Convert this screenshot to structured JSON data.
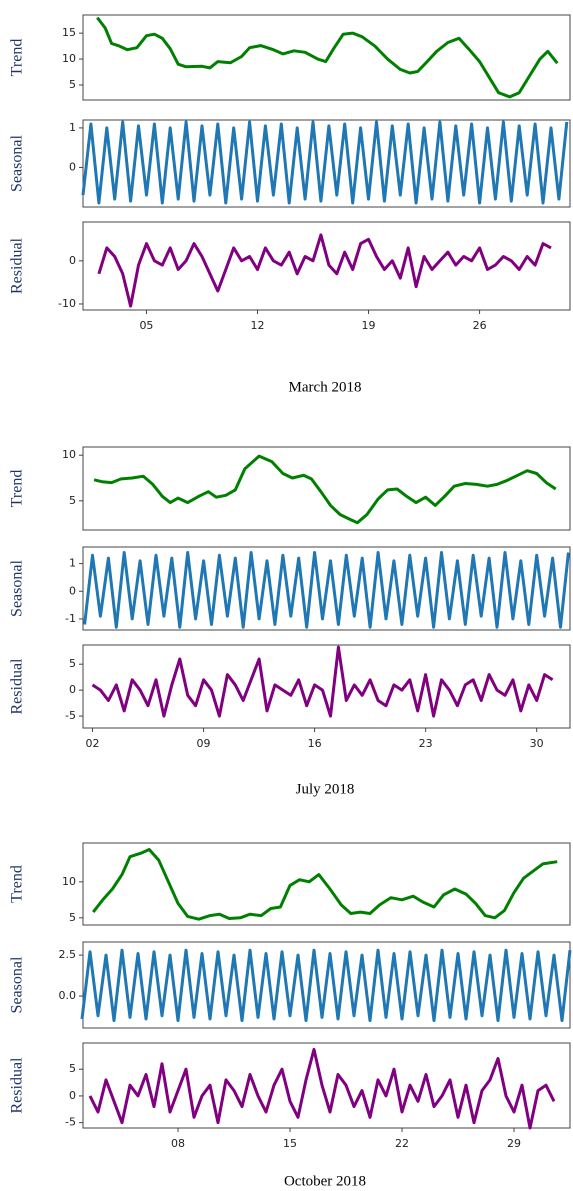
{
  "chart_data": [
    {
      "type": "line",
      "ylabel": "Trend",
      "color": "#008000",
      "xlim": [
        1,
        31.7
      ],
      "ylim": [
        2.1,
        18.5
      ],
      "yticks": [
        5,
        10,
        15
      ],
      "x": [
        1.9,
        2.4,
        2.8,
        3.3,
        3.8,
        4.4,
        5.0,
        5.5,
        6.0,
        6.5,
        7.0,
        7.5,
        8.5,
        9.0,
        9.5,
        10.3,
        11,
        11.5,
        12.2,
        13,
        13.6,
        14.3,
        15,
        15.8,
        16.3,
        16.8,
        17.4,
        18,
        18.6,
        19.4,
        20.2,
        21,
        21.6,
        22.1,
        22.7,
        23.3,
        24,
        24.7,
        25.3,
        26,
        26.7,
        27.2,
        27.9,
        28.5,
        29.2,
        29.8,
        30.3,
        30.9
      ],
      "values": [
        18,
        16,
        13,
        12.5,
        11.8,
        12.2,
        14.5,
        14.8,
        14,
        12,
        9,
        8.5,
        8.6,
        8.3,
        9.5,
        9.3,
        10.5,
        12.2,
        12.6,
        11.8,
        11,
        11.6,
        11.3,
        10,
        9.5,
        12,
        14.8,
        15,
        14.3,
        12.5,
        10,
        8,
        7.3,
        7.6,
        9.5,
        11.5,
        13.2,
        14,
        12,
        9.5,
        6,
        3.5,
        2.7,
        3.5,
        7,
        10,
        11.5,
        9.2
      ]
    },
    {
      "type": "line",
      "ylabel": "Seasonal",
      "color": "#1f77b4",
      "xlim": [
        1,
        31.7
      ],
      "ylim": [
        -1,
        1.2
      ],
      "yticks": [
        0,
        1
      ],
      "x": [
        1,
        1.5,
        2,
        2.5,
        3,
        3.5,
        4,
        4.5,
        5,
        5.5,
        6,
        6.5,
        7,
        7.5,
        8,
        8.5,
        9,
        9.5,
        10,
        10.5,
        11,
        11.5,
        12,
        12.5,
        13,
        13.5,
        14,
        14.5,
        15,
        15.5,
        16,
        16.5,
        17,
        17.5,
        18,
        18.5,
        19,
        19.5,
        20,
        20.5,
        21,
        21.5,
        22,
        22.5,
        23,
        23.5,
        24,
        24.5,
        25,
        25.5,
        26,
        26.5,
        27,
        27.5,
        28,
        28.5,
        29,
        29.5,
        30,
        30.5,
        31,
        31.5
      ],
      "values": [
        -0.7,
        1.1,
        -0.9,
        1.0,
        -0.8,
        1.15,
        -0.85,
        1.05,
        -0.7,
        1.1,
        -0.9,
        1.0,
        -0.8,
        1.15,
        -0.85,
        1.05,
        -0.7,
        1.1,
        -0.9,
        1.0,
        -0.8,
        1.15,
        -0.85,
        1.05,
        -0.7,
        1.1,
        -0.9,
        1.0,
        -0.8,
        1.15,
        -0.85,
        1.05,
        -0.7,
        1.1,
        -0.9,
        1.0,
        -0.8,
        1.15,
        -0.85,
        1.05,
        -0.7,
        1.1,
        -0.9,
        1.0,
        -0.8,
        1.15,
        -0.85,
        1.05,
        -0.7,
        1.1,
        -0.9,
        1.0,
        -0.8,
        1.15,
        -0.85,
        1.05,
        -0.7,
        1.1,
        -0.9,
        1.0,
        -0.8,
        1.15
      ]
    },
    {
      "type": "line",
      "ylabel": "Residual",
      "xlabel": "March 2018",
      "color": "#800080",
      "xlim": [
        1,
        31.7
      ],
      "ylim": [
        -11.4,
        9
      ],
      "yticks": [
        -10,
        0
      ],
      "xticks": [
        {
          "value": 5,
          "label": "05"
        },
        {
          "value": 12,
          "label": "12"
        },
        {
          "value": 19,
          "label": "19"
        },
        {
          "value": 26,
          "label": "26"
        }
      ],
      "x": [
        2,
        2.5,
        3,
        3.5,
        4,
        4.5,
        5,
        5.5,
        6,
        6.5,
        7,
        7.5,
        8,
        8.5,
        9,
        9.5,
        10,
        10.5,
        11,
        11.5,
        12,
        12.5,
        13,
        13.5,
        14,
        14.5,
        15,
        15.5,
        16,
        16.5,
        17,
        17.5,
        18,
        18.5,
        19,
        19.5,
        20,
        20.5,
        21,
        21.5,
        22,
        22.5,
        23,
        23.5,
        24,
        24.5,
        25,
        25.5,
        26,
        26.5,
        27,
        27.5,
        28,
        28.5,
        29,
        29.5,
        30,
        30.5
      ],
      "values": [
        -3,
        3,
        1,
        -3,
        -10.5,
        -1,
        4,
        0,
        -1,
        3,
        -2,
        0,
        4,
        1,
        -3,
        -7,
        -2,
        3,
        0,
        1,
        -2,
        3,
        0,
        -1,
        2,
        -3,
        1,
        0,
        6,
        -1,
        -3,
        2,
        -2,
        4,
        5,
        1,
        -2,
        0,
        -4,
        3,
        -6,
        1,
        -2,
        0,
        2,
        -1,
        1,
        0,
        3,
        -2,
        -1,
        1,
        0,
        -2,
        1,
        -1,
        4,
        3
      ]
    },
    {
      "type": "line",
      "ylabel": "Trend",
      "color": "#008000",
      "xlim": [
        1.4,
        32.1
      ],
      "ylim": [
        1.8,
        10.9
      ],
      "yticks": [
        5,
        10
      ],
      "x": [
        2.1,
        2.6,
        3.2,
        3.8,
        4.5,
        5.2,
        5.8,
        6.4,
        6.9,
        7.4,
        8.0,
        8.7,
        9.3,
        9.8,
        10.4,
        11.0,
        11.6,
        12.5,
        13.3,
        14.0,
        14.6,
        15.3,
        15.8,
        16.4,
        17.0,
        17.6,
        18.2,
        18.7,
        19.3,
        20.0,
        20.6,
        21.2,
        21.8,
        22.4,
        23.0,
        23.6,
        24.2,
        24.8,
        25.5,
        26.2,
        26.9,
        27.5,
        28.1,
        28.8,
        29.4,
        30.0,
        30.6,
        31.2
      ],
      "values": [
        7.3,
        7.1,
        7.0,
        7.4,
        7.5,
        7.7,
        6.8,
        5.5,
        4.8,
        5.3,
        4.8,
        5.5,
        6.0,
        5.4,
        5.6,
        6.2,
        8.5,
        9.9,
        9.3,
        8.0,
        7.5,
        7.8,
        7.4,
        6.0,
        4.5,
        3.5,
        3.0,
        2.6,
        3.5,
        5.2,
        6.2,
        6.3,
        5.5,
        4.8,
        5.4,
        4.5,
        5.5,
        6.6,
        6.9,
        6.8,
        6.6,
        6.8,
        7.2,
        7.8,
        8.3,
        8.0,
        7.0,
        6.3
      ]
    },
    {
      "type": "line",
      "ylabel": "Seasonal",
      "color": "#1f77b4",
      "xlim": [
        1.4,
        32.1
      ],
      "ylim": [
        -1.4,
        1.6
      ],
      "yticks": [
        -1,
        0,
        1
      ],
      "x": [
        1.5,
        2,
        2.5,
        3,
        3.5,
        4,
        4.5,
        5,
        5.5,
        6,
        6.5,
        7,
        7.5,
        8,
        8.5,
        9,
        9.5,
        10,
        10.5,
        11,
        11.5,
        12,
        12.5,
        13,
        13.5,
        14,
        14.5,
        15,
        15.5,
        16,
        16.5,
        17,
        17.5,
        18,
        18.5,
        19,
        19.5,
        20,
        20.5,
        21,
        21.5,
        22,
        22.5,
        23,
        23.5,
        24,
        24.5,
        25,
        25.5,
        26,
        26.5,
        27,
        27.5,
        28,
        28.5,
        29,
        29.5,
        30,
        30.5,
        31,
        31.5,
        32
      ],
      "values": [
        -1.2,
        1.3,
        -0.9,
        1.2,
        -1.3,
        1.4,
        -1.0,
        1.1,
        -1.2,
        1.3,
        -0.9,
        1.2,
        -1.3,
        1.4,
        -1.0,
        1.1,
        -1.2,
        1.3,
        -0.9,
        1.2,
        -1.3,
        1.4,
        -1.0,
        1.1,
        -1.2,
        1.3,
        -0.9,
        1.2,
        -1.3,
        1.4,
        -1.0,
        1.1,
        -1.2,
        1.3,
        -0.9,
        1.2,
        -1.3,
        1.4,
        -1.0,
        1.1,
        -1.2,
        1.3,
        -0.9,
        1.2,
        -1.3,
        1.4,
        -1.0,
        1.1,
        -1.2,
        1.3,
        -0.9,
        1.2,
        -1.3,
        1.4,
        -1.0,
        1.1,
        -1.2,
        1.3,
        -0.9,
        1.2,
        -1.3,
        1.4
      ]
    },
    {
      "type": "line",
      "ylabel": "Residual",
      "xlabel": "July 2018",
      "color": "#800080",
      "xlim": [
        1.4,
        32.1
      ],
      "ylim": [
        -7.3,
        8.7
      ],
      "yticks": [
        -5,
        0,
        5
      ],
      "xticks": [
        {
          "value": 2,
          "label": "02"
        },
        {
          "value": 9,
          "label": "09"
        },
        {
          "value": 16,
          "label": "16"
        },
        {
          "value": 23,
          "label": "23"
        },
        {
          "value": 30,
          "label": "30"
        }
      ],
      "x": [
        2,
        2.5,
        3,
        3.5,
        4,
        4.5,
        5,
        5.5,
        6,
        6.5,
        7,
        7.5,
        8,
        8.5,
        9,
        9.5,
        10,
        10.5,
        11,
        11.5,
        12,
        12.5,
        13,
        13.5,
        14,
        14.5,
        15,
        15.5,
        16,
        16.5,
        17,
        17.5,
        18,
        18.5,
        19,
        19.5,
        20,
        20.5,
        21,
        21.5,
        22,
        22.5,
        23,
        23.5,
        24,
        24.5,
        25,
        25.5,
        26,
        26.5,
        27,
        27.5,
        28,
        28.5,
        29,
        29.5,
        30,
        30.5,
        31
      ],
      "values": [
        1,
        0,
        -2,
        1,
        -4,
        2,
        0,
        -3,
        2,
        -5,
        1,
        6,
        -1,
        -3,
        2,
        0,
        -5,
        3,
        1,
        -2,
        2,
        6,
        -4,
        1,
        0,
        -1,
        2,
        -3,
        1,
        0,
        -5,
        8.3,
        -2,
        1,
        -1,
        2,
        -2,
        -3,
        1,
        0,
        2,
        -4,
        3,
        -5,
        2,
        0,
        -3,
        1,
        2,
        -2,
        3,
        0,
        -1,
        2,
        -4,
        1,
        -2,
        3,
        2
      ]
    },
    {
      "type": "line",
      "ylabel": "Trend",
      "color": "#008000",
      "xlim": [
        2.06,
        32.5
      ],
      "ylim": [
        4,
        15.4
      ],
      "yticks": [
        5,
        10
      ],
      "x": [
        2.7,
        3.3,
        3.9,
        4.5,
        5.0,
        5.7,
        6.2,
        6.8,
        7.4,
        8.0,
        8.6,
        9.3,
        10.0,
        10.6,
        11.2,
        11.9,
        12.5,
        13.2,
        13.8,
        14.4,
        15.0,
        15.6,
        16.2,
        16.8,
        17.5,
        18.2,
        18.8,
        19.4,
        20.0,
        20.6,
        21.3,
        22.0,
        22.7,
        23.3,
        24.0,
        24.6,
        25.3,
        26.0,
        26.6,
        27.2,
        27.8,
        28.4,
        29.0,
        29.6,
        30.2,
        30.8,
        31.7
      ],
      "values": [
        5.8,
        7.5,
        9,
        11,
        13.5,
        14.0,
        14.5,
        13.0,
        10.0,
        7.0,
        5.2,
        4.8,
        5.3,
        5.5,
        4.9,
        5.0,
        5.5,
        5.3,
        6.3,
        6.5,
        9.5,
        10.3,
        10.0,
        11.0,
        9.0,
        6.8,
        5.6,
        5.8,
        5.6,
        6.8,
        7.8,
        7.5,
        8.0,
        7.2,
        6.5,
        8.2,
        9.0,
        8.3,
        7.0,
        5.3,
        5.0,
        6.0,
        8.5,
        10.5,
        11.5,
        12.5,
        12.8
      ]
    },
    {
      "type": "line",
      "ylabel": "Seasonal",
      "color": "#1f77b4",
      "xlim": [
        2.06,
        32.5
      ],
      "ylim": [
        -1.95,
        3.3
      ],
      "yticks": [
        {
          "value": 0,
          "label": "0.0"
        },
        2.5
      ],
      "x": [
        2,
        2.5,
        3,
        3.5,
        4,
        4.5,
        5,
        5.5,
        6,
        6.5,
        7,
        7.5,
        8,
        8.5,
        9,
        9.5,
        10,
        10.5,
        11,
        11.5,
        12,
        12.5,
        13,
        13.5,
        14,
        14.5,
        15,
        15.5,
        16,
        16.5,
        17,
        17.5,
        18,
        18.5,
        19,
        19.5,
        20,
        20.5,
        21,
        21.5,
        22,
        22.5,
        23,
        23.5,
        24,
        24.5,
        25,
        25.5,
        26,
        26.5,
        27,
        27.5,
        28,
        28.5,
        29,
        29.5,
        30,
        30.5,
        31,
        31.5,
        32,
        32.5
      ],
      "values": [
        -1.4,
        2.7,
        -1.2,
        2.5,
        -1.5,
        2.8,
        -1.3,
        2.6,
        -1.4,
        2.7,
        -1.2,
        2.5,
        -1.5,
        2.8,
        -1.3,
        2.6,
        -1.4,
        2.7,
        -1.2,
        2.5,
        -1.5,
        2.8,
        -1.3,
        2.6,
        -1.4,
        2.7,
        -1.2,
        2.5,
        -1.5,
        2.8,
        -1.3,
        2.6,
        -1.4,
        2.7,
        -1.2,
        2.5,
        -1.5,
        2.8,
        -1.3,
        2.6,
        -1.4,
        2.7,
        -1.2,
        2.5,
        -1.5,
        2.8,
        -1.3,
        2.6,
        -1.4,
        2.7,
        -1.2,
        2.5,
        -1.5,
        2.8,
        -1.3,
        2.6,
        -1.4,
        2.7,
        -1.2,
        2.5,
        -1.5,
        2.8
      ]
    },
    {
      "type": "line",
      "ylabel": "Residual",
      "xlabel": "October 2018",
      "color": "#800080",
      "xlim": [
        2.06,
        32.5
      ],
      "ylim": [
        -6,
        9.9
      ],
      "yticks": [
        -5,
        0,
        5
      ],
      "xticks": [
        {
          "value": 8,
          "label": "08"
        },
        {
          "value": 15,
          "label": "15"
        },
        {
          "value": 22,
          "label": "22"
        },
        {
          "value": 29,
          "label": "29"
        }
      ],
      "x": [
        2.5,
        3,
        3.5,
        4,
        4.5,
        5,
        5.5,
        6,
        6.5,
        7,
        7.5,
        8,
        8.5,
        9,
        9.5,
        10,
        10.5,
        11,
        11.5,
        12,
        12.5,
        13,
        13.5,
        14,
        14.5,
        15,
        15.5,
        16,
        16.5,
        17,
        17.5,
        18,
        18.5,
        19,
        19.5,
        20,
        20.5,
        21,
        21.5,
        22,
        22.5,
        23,
        23.5,
        24,
        24.5,
        25,
        25.5,
        26,
        26.5,
        27,
        27.5,
        28,
        28.5,
        29,
        29.5,
        30,
        30.5,
        31,
        31.5
      ],
      "values": [
        0,
        -3,
        3,
        -1,
        -5,
        2,
        0,
        4,
        -2,
        6,
        -3,
        1,
        5,
        -4,
        0,
        2,
        -5,
        3,
        1,
        -2,
        4,
        0,
        -3,
        2,
        5,
        -1,
        -4,
        3,
        8.7,
        2,
        -3,
        4,
        2,
        -2,
        1,
        -4,
        3,
        0,
        5,
        -3,
        2,
        -1,
        4,
        -2,
        0,
        3,
        -4,
        2,
        -5,
        1,
        3,
        7,
        0,
        -3,
        2,
        -6,
        1,
        2,
        -1
      ]
    }
  ]
}
